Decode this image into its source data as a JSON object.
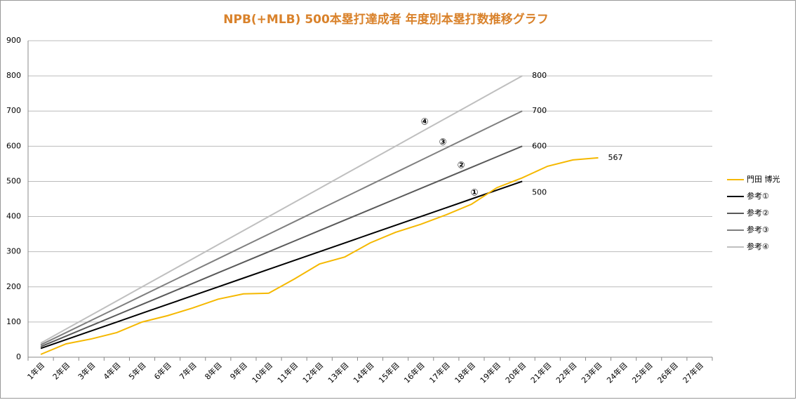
{
  "chart_data": {
    "type": "line",
    "title": "NPB(+MLB) 500本塁打達成者 年度別本塁打数推移グラフ",
    "categories": [
      "1年目",
      "2年目",
      "3年目",
      "4年目",
      "5年目",
      "6年目",
      "7年目",
      "8年目",
      "9年目",
      "10年目",
      "11年目",
      "12年目",
      "13年目",
      "14年目",
      "15年目",
      "16年目",
      "17年目",
      "18年目",
      "19年目",
      "20年目",
      "21年目",
      "22年目",
      "23年目",
      "24年目",
      "25年目",
      "26年目",
      "27年目"
    ],
    "series": [
      {
        "name": "門田 博光",
        "color": "#f5b800",
        "values": [
          8,
          38,
          52,
          70,
          100,
          118,
          140,
          165,
          180,
          182,
          222,
          265,
          285,
          325,
          355,
          378,
          405,
          435,
          482,
          510,
          543,
          561,
          567,
          null,
          null,
          null,
          null
        ]
      },
      {
        "name": "参考①",
        "color": "#000000",
        "values": [
          25,
          50,
          75,
          100,
          125,
          150,
          175,
          200,
          225,
          250,
          275,
          300,
          325,
          350,
          375,
          400,
          425,
          450,
          475,
          500,
          null,
          null,
          null,
          null,
          null,
          null,
          null
        ]
      },
      {
        "name": "参考②",
        "color": "#595959",
        "values": [
          30,
          60,
          90,
          120,
          150,
          180,
          210,
          240,
          270,
          300,
          330,
          360,
          390,
          420,
          450,
          480,
          510,
          540,
          570,
          600,
          null,
          null,
          null,
          null,
          null,
          null,
          null
        ]
      },
      {
        "name": "参考③",
        "color": "#7f7f7f",
        "values": [
          35,
          70,
          105,
          140,
          175,
          210,
          245,
          280,
          315,
          350,
          385,
          420,
          455,
          490,
          525,
          560,
          595,
          630,
          665,
          700,
          null,
          null,
          null,
          null,
          null,
          null,
          null
        ]
      },
      {
        "name": "参考④",
        "color": "#bfbfbf",
        "values": [
          40,
          80,
          120,
          160,
          200,
          240,
          280,
          320,
          360,
          400,
          440,
          480,
          520,
          560,
          600,
          640,
          680,
          720,
          760,
          800,
          null,
          null,
          null,
          null,
          null,
          null,
          null
        ]
      }
    ],
    "annotations": [
      "①",
      "②",
      "③",
      "④"
    ],
    "ylim": [
      0,
      900
    ],
    "yticks": [
      0,
      100,
      200,
      300,
      400,
      500,
      600,
      700,
      800,
      900
    ],
    "grid": true,
    "legend": "right"
  }
}
